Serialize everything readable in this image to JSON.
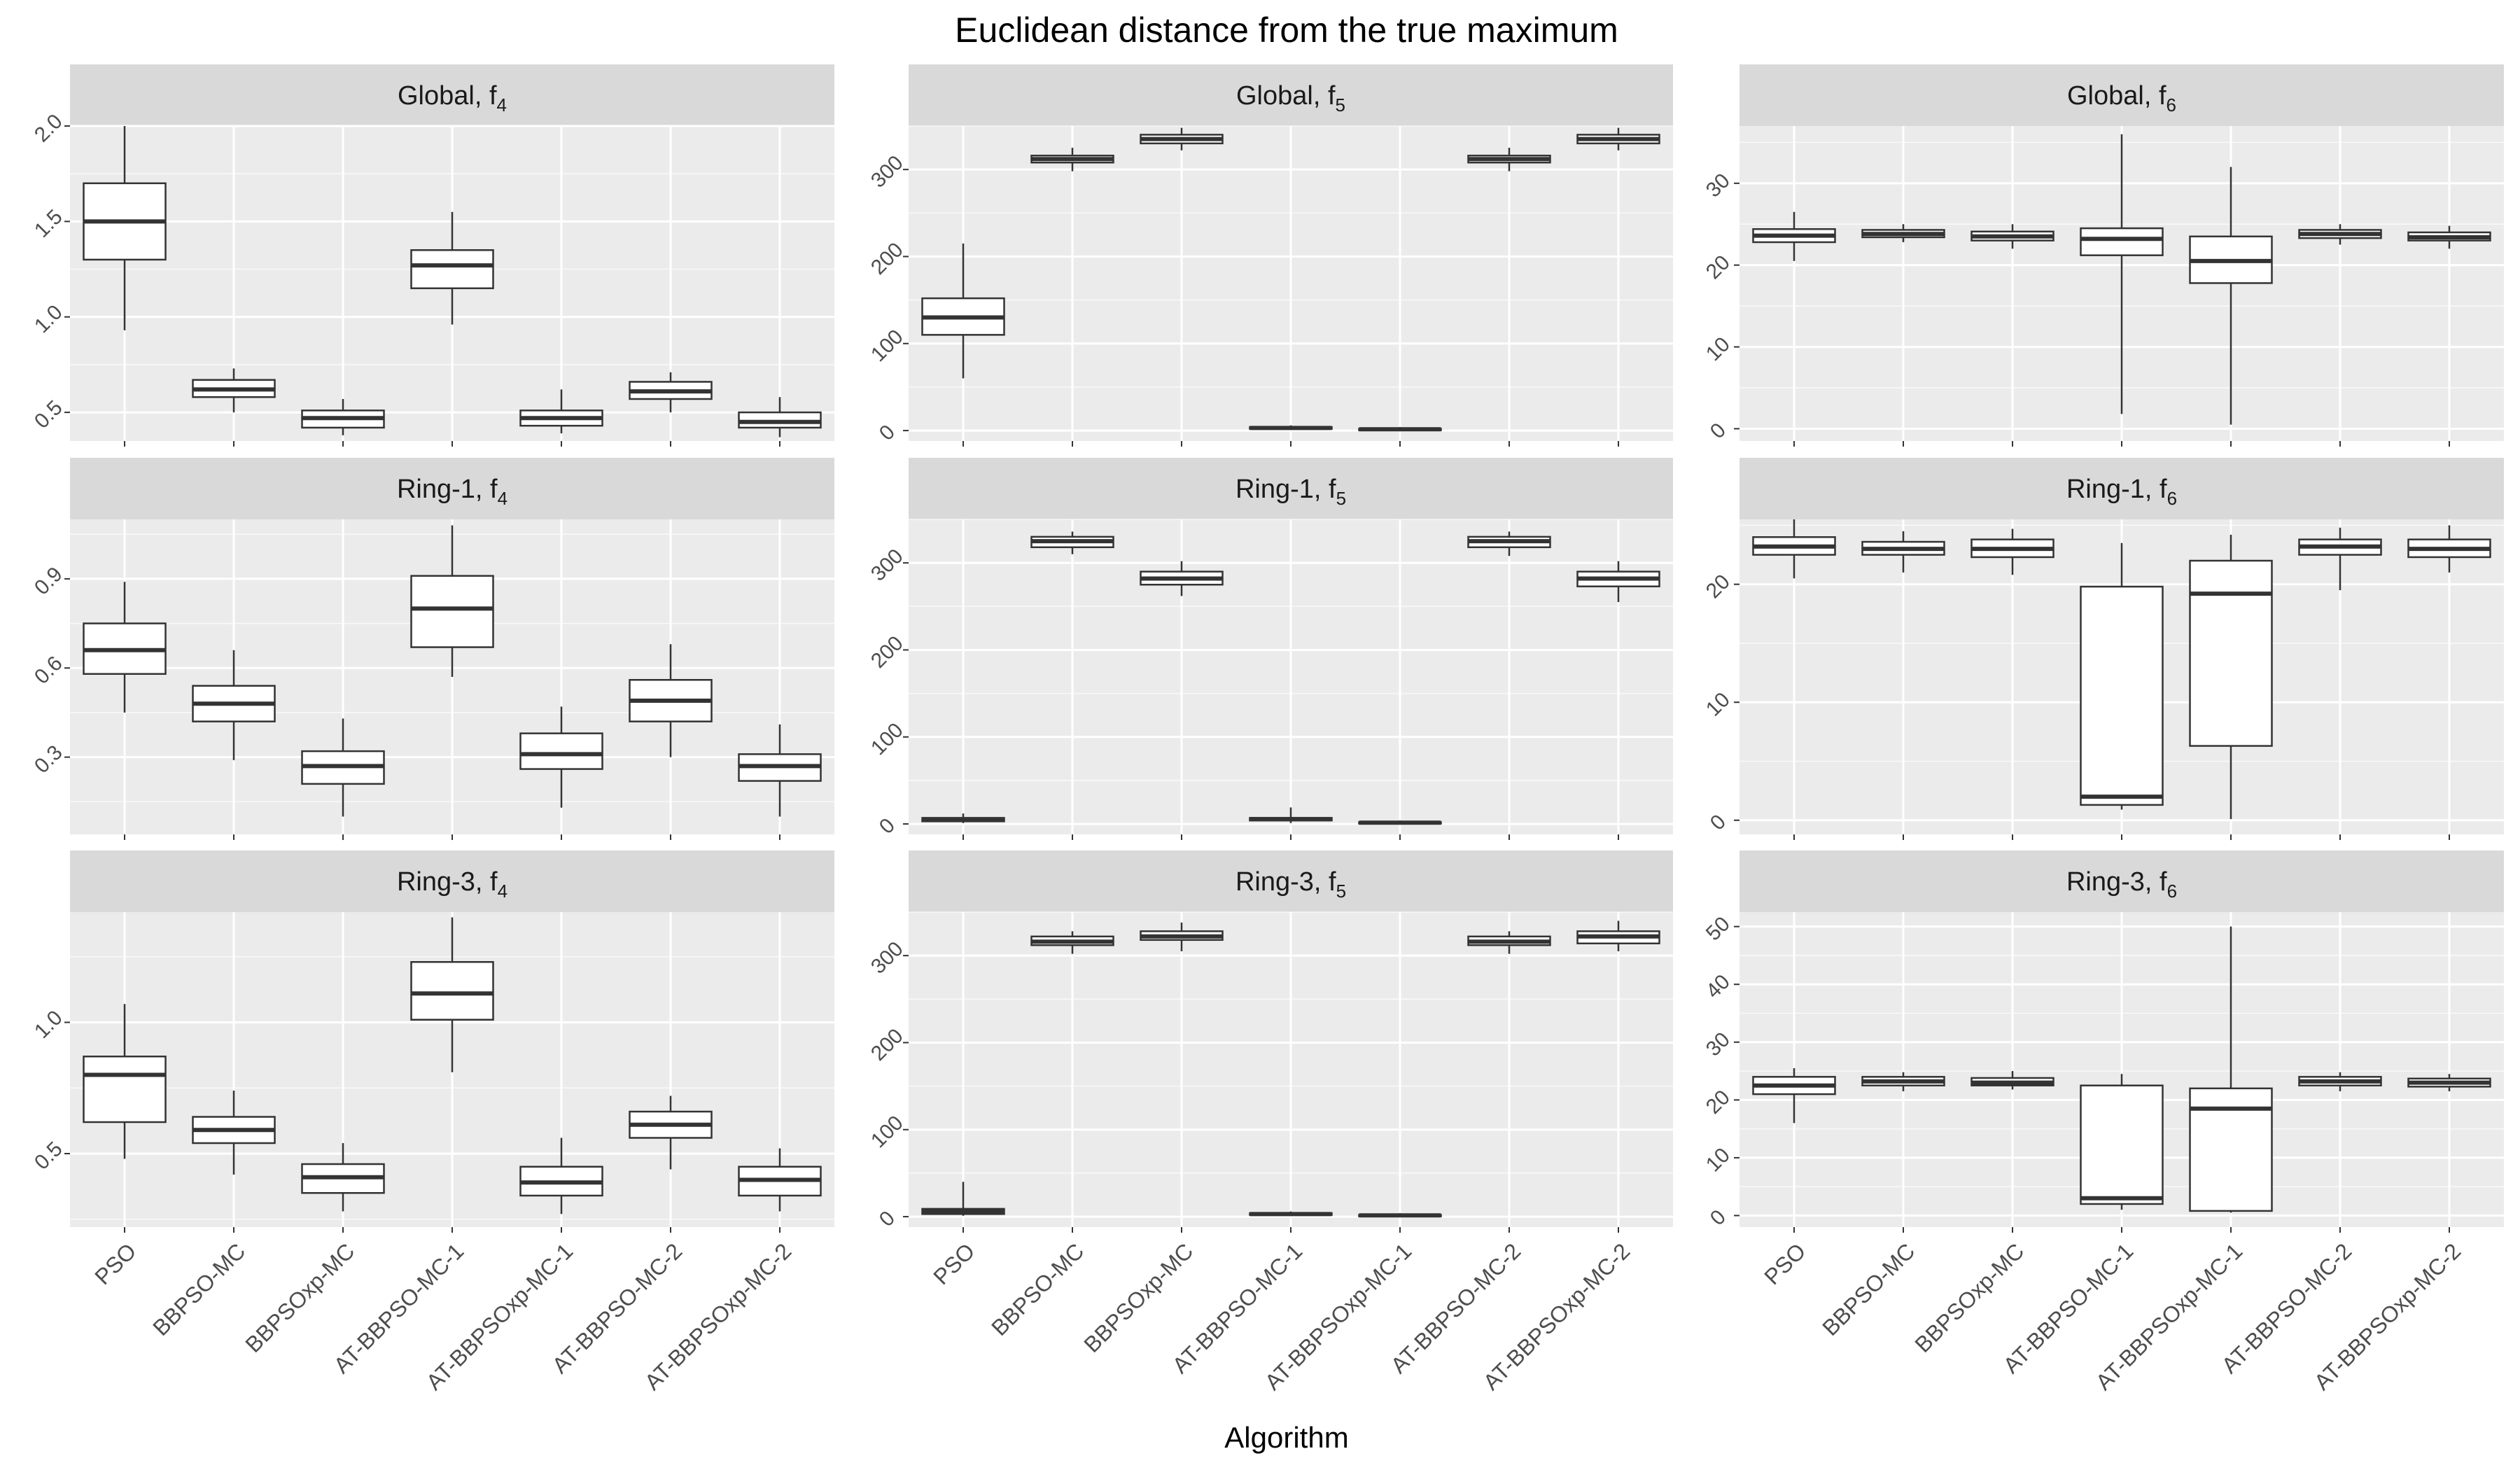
{
  "chart_data": {
    "type": "box",
    "title": "Euclidean distance from the true maximum",
    "xlabel": "Algorithm",
    "ylabel": "",
    "categories": [
      "PSO",
      "BBPSO-MC",
      "BBPSOxp-MC",
      "AT-BBPSO-MC-1",
      "AT-BBPSOxp-MC-1",
      "AT-BBPSO-MC-2",
      "AT-BBPSOxp-MC-2"
    ],
    "grid": true,
    "legend": "none",
    "colors": {
      "panel_background": "#ebebeb",
      "strip_background": "#d9d9d9",
      "grid_major": "#ffffff",
      "box_fill": "#ffffff",
      "box_line": "#333333"
    },
    "facet_rows": [
      "Global",
      "Ring-1",
      "Ring-3"
    ],
    "facet_cols": [
      "4",
      "5",
      "6"
    ],
    "panels": [
      {
        "row": "Global",
        "label": "Global, f",
        "sub": "4",
        "ylim": [
          0.35,
          2.0
        ],
        "yticks": [
          0.5,
          1.0,
          1.5,
          2.0
        ],
        "ytick_labels": [
          "0.5",
          "1.0",
          "1.5",
          "2.0"
        ],
        "boxes": [
          [
            0.93,
            1.3,
            1.5,
            1.7,
            2.0
          ],
          [
            0.5,
            0.58,
            0.62,
            0.67,
            0.73
          ],
          [
            0.38,
            0.42,
            0.47,
            0.51,
            0.57
          ],
          [
            0.96,
            1.15,
            1.27,
            1.35,
            1.55
          ],
          [
            0.39,
            0.43,
            0.47,
            0.51,
            0.62
          ],
          [
            0.5,
            0.57,
            0.61,
            0.66,
            0.71
          ],
          [
            0.37,
            0.42,
            0.45,
            0.5,
            0.58
          ]
        ]
      },
      {
        "row": "Global",
        "label": "Global, f",
        "sub": "5",
        "ylim": [
          -12,
          350
        ],
        "yticks": [
          0,
          100,
          200,
          300
        ],
        "ytick_labels": [
          "0",
          "100",
          "200",
          "300"
        ],
        "boxes": [
          [
            60,
            110,
            130,
            152,
            215
          ],
          [
            298,
            308,
            312,
            316,
            325
          ],
          [
            322,
            330,
            335,
            340,
            348
          ],
          [
            1,
            2,
            3,
            4,
            6
          ],
          [
            0,
            1,
            1.5,
            2,
            4
          ],
          [
            298,
            308,
            312,
            316,
            325
          ],
          [
            322,
            330,
            335,
            340,
            348
          ]
        ]
      },
      {
        "row": "Global",
        "label": "Global, f",
        "sub": "6",
        "ylim": [
          -1.5,
          37
        ],
        "yticks": [
          0,
          10,
          20,
          30
        ],
        "ytick_labels": [
          "0",
          "10",
          "20",
          "30"
        ],
        "boxes": [
          [
            20.5,
            22.8,
            23.6,
            24.4,
            26.5
          ],
          [
            22.8,
            23.4,
            23.8,
            24.3,
            25
          ],
          [
            22,
            23,
            23.5,
            24.1,
            25
          ],
          [
            1.8,
            21.2,
            23.2,
            24.5,
            36
          ],
          [
            0.5,
            17.8,
            20.5,
            23.5,
            32
          ],
          [
            22.5,
            23.3,
            23.8,
            24.3,
            25
          ],
          [
            22,
            23,
            23.4,
            24,
            24.8
          ]
        ]
      },
      {
        "row": "Ring-1",
        "label": "Ring-1, f",
        "sub": "4",
        "ylim": [
          0.04,
          1.1
        ],
        "yticks": [
          0.3,
          0.6,
          0.9
        ],
        "ytick_labels": [
          "0.3",
          "0.6",
          "0.9"
        ],
        "boxes": [
          [
            0.45,
            0.58,
            0.66,
            0.75,
            0.89
          ],
          [
            0.29,
            0.42,
            0.48,
            0.54,
            0.66
          ],
          [
            0.1,
            0.21,
            0.27,
            0.32,
            0.43
          ],
          [
            0.57,
            0.67,
            0.8,
            0.91,
            1.08
          ],
          [
            0.13,
            0.26,
            0.31,
            0.38,
            0.47
          ],
          [
            0.3,
            0.42,
            0.49,
            0.56,
            0.68
          ],
          [
            0.1,
            0.22,
            0.27,
            0.31,
            0.41
          ]
        ]
      },
      {
        "row": "Ring-1",
        "label": "Ring-1, f",
        "sub": "5",
        "ylim": [
          -12,
          350
        ],
        "yticks": [
          0,
          100,
          200,
          300
        ],
        "ytick_labels": [
          "0",
          "100",
          "200",
          "300"
        ],
        "boxes": [
          [
            1,
            3,
            5,
            7,
            12
          ],
          [
            310,
            318,
            325,
            330,
            336
          ],
          [
            262,
            275,
            282,
            290,
            302
          ],
          [
            1,
            4,
            5.5,
            7,
            19
          ],
          [
            0,
            1,
            1.5,
            2,
            4
          ],
          [
            308,
            318,
            325,
            330,
            336
          ],
          [
            255,
            273,
            282,
            290,
            302
          ]
        ]
      },
      {
        "row": "Ring-1",
        "label": "Ring-1, f",
        "sub": "6",
        "ylim": [
          -1.2,
          25.5
        ],
        "yticks": [
          0,
          10,
          20
        ],
        "ytick_labels": [
          "0",
          "10",
          "20"
        ],
        "boxes": [
          [
            20.5,
            22.5,
            23.2,
            24,
            25.5
          ],
          [
            21,
            22.5,
            23,
            23.6,
            24.5
          ],
          [
            20.8,
            22.3,
            23,
            23.8,
            24.7
          ],
          [
            0.9,
            1.3,
            2,
            19.8,
            23.5
          ],
          [
            0.1,
            6.3,
            19.2,
            22,
            24.2
          ],
          [
            19.5,
            22.5,
            23.2,
            23.8,
            24.8
          ],
          [
            21,
            22.3,
            23,
            23.8,
            25
          ]
        ]
      },
      {
        "row": "Ring-3",
        "label": "Ring-3, f",
        "sub": "4",
        "ylim": [
          0.22,
          1.42
        ],
        "yticks": [
          0.5,
          1.0
        ],
        "ytick_labels": [
          "0.5",
          "1.0"
        ],
        "boxes": [
          [
            0.48,
            0.62,
            0.8,
            0.87,
            1.07
          ],
          [
            0.42,
            0.54,
            0.59,
            0.64,
            0.74
          ],
          [
            0.28,
            0.35,
            0.41,
            0.46,
            0.54
          ],
          [
            0.81,
            1.01,
            1.11,
            1.23,
            1.4
          ],
          [
            0.27,
            0.34,
            0.39,
            0.45,
            0.56
          ],
          [
            0.44,
            0.56,
            0.61,
            0.66,
            0.72
          ],
          [
            0.28,
            0.34,
            0.4,
            0.45,
            0.52
          ]
        ]
      },
      {
        "row": "Ring-3",
        "label": "Ring-3, f",
        "sub": "5",
        "ylim": [
          -12,
          350
        ],
        "yticks": [
          0,
          100,
          200,
          300
        ],
        "ytick_labels": [
          "0",
          "100",
          "200",
          "300"
        ],
        "boxes": [
          [
            1,
            3,
            6,
            9,
            40
          ],
          [
            302,
            312,
            316,
            322,
            328
          ],
          [
            305,
            318,
            322,
            328,
            338
          ],
          [
            1,
            2,
            3,
            4,
            6
          ],
          [
            0,
            1,
            1.5,
            2,
            4
          ],
          [
            302,
            312,
            316,
            322,
            328
          ],
          [
            305,
            314,
            322,
            328,
            340
          ]
        ]
      },
      {
        "row": "Ring-3",
        "label": "Ring-3, f",
        "sub": "6",
        "ylim": [
          -2,
          52.5
        ],
        "yticks": [
          0,
          10,
          20,
          30,
          40,
          50
        ],
        "ytick_labels": [
          "0",
          "10",
          "20",
          "30",
          "40",
          "50"
        ],
        "boxes": [
          [
            16,
            21,
            22.5,
            24,
            25.5
          ],
          [
            21.5,
            22.5,
            23.2,
            24,
            24.8
          ],
          [
            21.8,
            22.5,
            23,
            23.8,
            25
          ],
          [
            1,
            2,
            3,
            22.5,
            24.5
          ],
          [
            0.5,
            0.8,
            18.5,
            22,
            50
          ],
          [
            21.5,
            22.5,
            23.2,
            24,
            24.8
          ],
          [
            21.5,
            22.3,
            23,
            23.7,
            24.5
          ]
        ]
      }
    ]
  }
}
